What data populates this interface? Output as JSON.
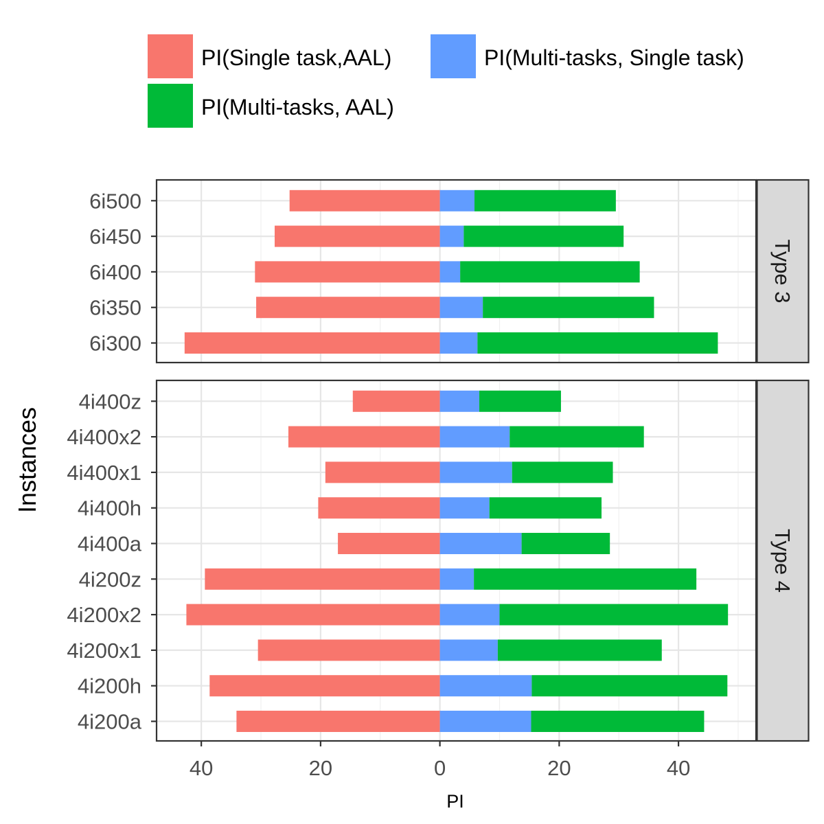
{
  "chart_data": {
    "type": "bar",
    "orientation": "horizontal",
    "stacked": true,
    "xlabel": "PI",
    "ylabel": "Instances",
    "x_ticks": [
      -40,
      -20,
      0,
      20,
      40
    ],
    "x_tick_labels": [
      "40",
      "20",
      "0",
      "20",
      "40"
    ],
    "xlim": [
      -47.5,
      53
    ],
    "grid": true,
    "legend_position": "top",
    "legend": [
      {
        "key": "single_aal",
        "label": "PI(Single task,AAL)",
        "color": "#F8766D"
      },
      {
        "key": "multi_single",
        "label": "PI(Multi-tasks, Single task)",
        "color": "#619CFF"
      },
      {
        "key": "multi_aal",
        "label": "PI(Multi-tasks, AAL)",
        "color": "#00BA38"
      }
    ],
    "panels": [
      {
        "strip": "Type 3",
        "categories": [
          "6i500",
          "6i450",
          "6i400",
          "6i350",
          "6i300"
        ],
        "series": [
          {
            "key": "single_aal",
            "values": [
              -25.2,
              -27.7,
              -31.0,
              -30.8,
              -42.8
            ]
          },
          {
            "key": "multi_single",
            "values": [
              5.8,
              4.0,
              3.4,
              7.2,
              6.3
            ]
          },
          {
            "key": "multi_aal",
            "values": [
              23.7,
              26.8,
              30.1,
              28.7,
              40.3
            ]
          }
        ]
      },
      {
        "strip": "Type 4",
        "categories": [
          "4i400z",
          "4i400x2",
          "4i400x1",
          "4i400h",
          "4i400a",
          "4i200z",
          "4i200x2",
          "4i200x1",
          "4i200h",
          "4i200a"
        ],
        "series": [
          {
            "key": "single_aal",
            "values": [
              -14.6,
              -25.4,
              -19.2,
              -20.4,
              -17.1,
              -39.4,
              -42.5,
              -30.5,
              -38.6,
              -34.1
            ]
          },
          {
            "key": "multi_single",
            "values": [
              6.6,
              11.7,
              12.1,
              8.3,
              13.7,
              5.7,
              10.0,
              9.7,
              15.4,
              15.3
            ]
          },
          {
            "key": "multi_aal",
            "values": [
              13.7,
              22.5,
              16.9,
              18.8,
              14.8,
              37.3,
              38.3,
              27.5,
              32.8,
              29.0
            ]
          }
        ]
      }
    ]
  }
}
